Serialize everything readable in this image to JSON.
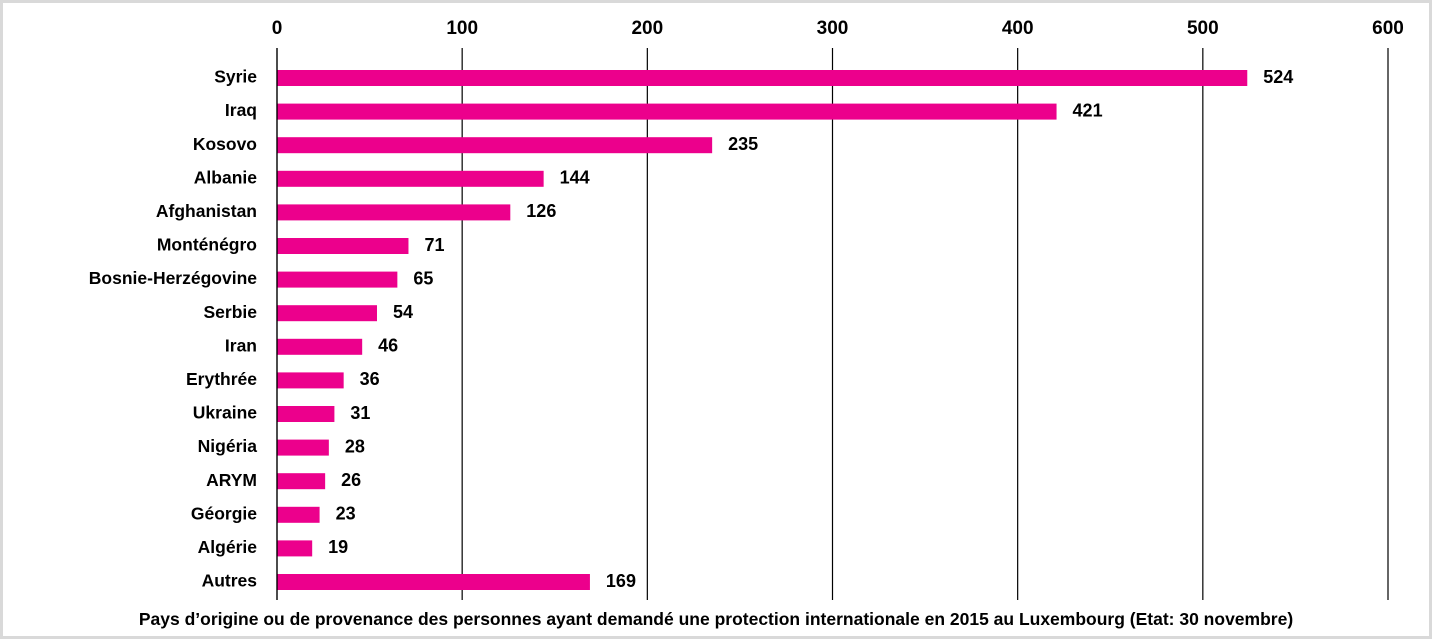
{
  "chart_data": {
    "type": "bar",
    "orientation": "horizontal",
    "caption": "Pays d’origine ou de provenance des personnes ayant demandé une protection internationale en 2015 au Luxembourg (Etat: 30 novembre)",
    "categories": [
      "Syrie",
      "Iraq",
      "Kosovo",
      "Albanie",
      "Afghanistan",
      "Monténégro",
      "Bosnie-Herzégovine",
      "Serbie",
      "Iran",
      "Erythrée",
      "Ukraine",
      "Nigéria",
      "ARYM",
      "Géorgie",
      "Algérie",
      "Autres"
    ],
    "values": [
      524,
      421,
      235,
      144,
      126,
      71,
      65,
      54,
      46,
      36,
      31,
      28,
      26,
      23,
      19,
      169
    ],
    "xlim": [
      0,
      600
    ],
    "xticks": [
      "0",
      "100",
      "200",
      "300",
      "400",
      "500",
      "600"
    ],
    "x_axis_position": "top",
    "grid": true,
    "bar_color": "#ec008c"
  }
}
